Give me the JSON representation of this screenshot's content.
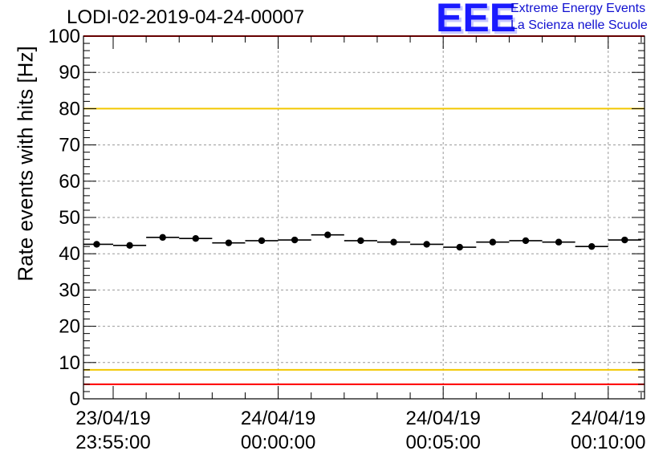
{
  "chart_data": {
    "type": "scatter",
    "title": "LODI-02-2019-04-24-00007",
    "ylabel": "Rate events with hits [Hz]",
    "xlabel": "",
    "ylim": [
      0,
      100
    ],
    "yticks": [
      0,
      10,
      20,
      30,
      40,
      50,
      60,
      70,
      80,
      90,
      100
    ],
    "x_range_minutes": [
      -0.9,
      16.1
    ],
    "xticks": [
      {
        "minute": 0,
        "line1": "23/04/19",
        "line2": "23:55:00"
      },
      {
        "minute": 5,
        "line1": "24/04/19",
        "line2": "00:00:00"
      },
      {
        "minute": 10,
        "line1": "24/04/19",
        "line2": "00:05:00"
      },
      {
        "minute": 15,
        "line1": "24/04/19",
        "line2": "00:10:00"
      }
    ],
    "bin_width_minutes": 1,
    "series": [
      {
        "name": "rate",
        "x_minutes": [
          -0.5,
          0.5,
          1.5,
          2.5,
          3.5,
          4.5,
          5.5,
          6.5,
          7.5,
          8.5,
          9.5,
          10.5,
          11.5,
          12.5,
          13.5,
          14.5,
          15.5
        ],
        "values": [
          42.6,
          42.3,
          44.5,
          44.2,
          43.0,
          43.6,
          43.8,
          45.2,
          43.6,
          43.2,
          42.6,
          41.8,
          43.2,
          43.6,
          43.2,
          42.0,
          43.8
        ]
      }
    ],
    "reference_lines": [
      {
        "value": 100,
        "color": "#ff0000"
      },
      {
        "value": 80,
        "color": "#f2c800"
      },
      {
        "value": 8,
        "color": "#f2c800"
      },
      {
        "value": 4,
        "color": "#ff0000"
      }
    ],
    "grid": true
  },
  "logo": {
    "mark": "EEE",
    "line1": "Extreme Energy Events",
    "line2": "La Scienza nelle Scuole",
    "color": "#1a1aff"
  }
}
